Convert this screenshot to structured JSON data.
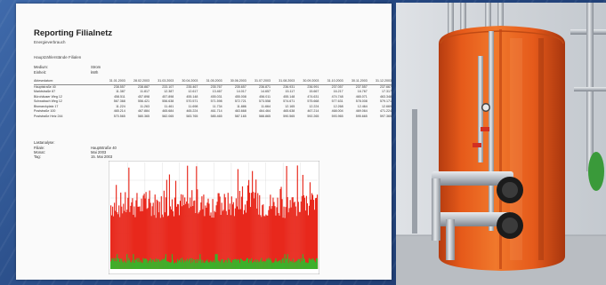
{
  "report": {
    "title": "Reporting Filialnetz",
    "subtitle": "Energieverbrauch",
    "section": "Hauptzählerstände Filialen",
    "meta": [
      {
        "label": "Medium:",
        "value": "Strom"
      },
      {
        "label": "Einheit:",
        "value": "kWh"
      }
    ],
    "table": {
      "columns": [
        "31.01.2003",
        "28.02.2003",
        "31.03.2003",
        "30.04.2003",
        "31.05.2003",
        "30.06.2003",
        "31.07.2003",
        "31.08.2003",
        "30.09.2003",
        "31.10.2003",
        "30.11.2003",
        "31.12.2003"
      ],
      "rows": [
        {
          "label": "Ablesedatum:",
          "values": []
        },
        {
          "label": "Hauptstraße 40",
          "values": [
            "238.557",
            "238.887",
            "233.107",
            "235.467",
            "235.767",
            "235.657",
            "236.871",
            "236.931",
            "236.991",
            "237.057",
            "237.557",
            "237.667"
          ]
        },
        {
          "label": "Marktstraße 87",
          "values": [
            "11.387",
            "11.817",
            "12.387",
            "12.617",
            "13.467",
            "14.017",
            "14.657",
            "15.117",
            "15.667",
            "16.217",
            "16.767",
            "17.317"
          ]
        },
        {
          "label": "Bürohäuser Weg 12",
          "values": [
            "458.511",
            "457.898",
            "457.898",
            "455.148",
            "455.031",
            "455.008",
            "456.011",
            "455.148",
            "474.631",
            "474.748",
            "465.071",
            "463.348"
          ]
        },
        {
          "label": "Schwabach Weg 12",
          "values": [
            "567.368",
            "556.421",
            "556.638",
            "570.571",
            "571.598",
            "572.721",
            "573.558",
            "574.671",
            "575.668",
            "577.631",
            "578.008",
            "579.171"
          ]
        },
        {
          "label": "Bismarckplatz 17",
          "values": [
            "11.224",
            "11.263",
            "11.461",
            "11.698",
            "11.734",
            "11.886",
            "11.664",
            "12.165",
            "12.224",
            "12.268",
            "12.464",
            "12.669"
          ]
        },
        {
          "label": "Poststraße 100",
          "values": [
            "465.214",
            "467.884",
            "465.684",
            "465.224",
            "461.714",
            "463.668",
            "464.464",
            "465.638",
            "467.214",
            "468.004",
            "469.064",
            "471.224"
          ]
        },
        {
          "label": "Poststraße Heiz 244",
          "values": [
            "570.565",
            "580.365",
            "582.065",
            "583.765",
            "585.465",
            "587.165",
            "588.865",
            "590.565",
            "592.265",
            "593.965",
            "595.665",
            "597.365"
          ]
        }
      ]
    },
    "lastprofile": {
      "heading": "Lastanalyse:",
      "fields": [
        {
          "label": "Filiale:",
          "value": "Hauptstraße 40"
        },
        {
          "label": "Monat:",
          "value": "Mai 2003"
        },
        {
          "label": "Tag:",
          "value": "15. Mai 2003"
        }
      ]
    }
  },
  "colors": {
    "chart_area": "#e8281c",
    "chart_base": "#3db02a",
    "tank_shell": "#e8581a",
    "pipe": "#b6bcc4",
    "valve_red": "#d22f22"
  },
  "chart_data": {
    "type": "area",
    "title": "",
    "xlabel": "",
    "ylabel": "",
    "grid": true,
    "series": [
      {
        "seed": 7,
        "typical": 0.6,
        "spike_max": 0.98
      },
      {
        "seed": 3,
        "typical": 0.08,
        "spike_max": 0.14
      }
    ]
  },
  "photo": {
    "subject": "insulated-water-tank"
  }
}
